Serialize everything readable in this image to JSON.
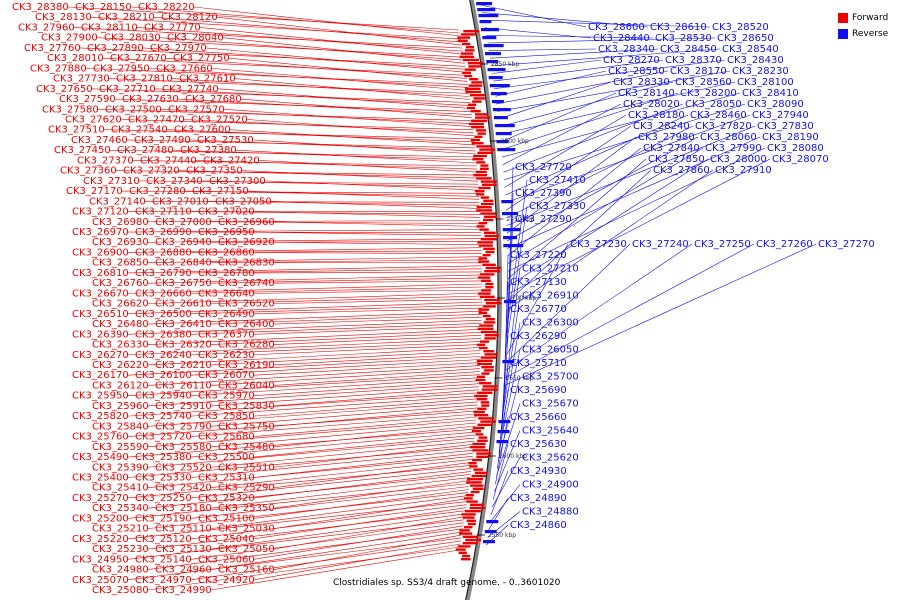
{
  "legend": [
    {
      "label": "Forward",
      "color": "#ee0000"
    },
    {
      "label": "Reverse",
      "color": "#1111ee"
    }
  ],
  "caption": "Clostridiales sp. SS3/4 draft genome. - 0..3601020",
  "ticks": [
    "2850 kbp",
    "2800 kbp",
    "2750 kbp",
    "2700 kbp",
    "2650 kbp",
    "2600 kbp",
    "2550 kbp"
  ],
  "forward_labels": [
    "CK3_28380",
    "CK3_28150",
    "CK3_28220",
    "CK3_28130",
    "CK3_28210",
    "CK3_28120",
    "CK3_27960",
    "CK3_28110",
    "CK3_27770",
    "CK3_27900",
    "CK3_28030",
    "CK3_28040",
    "CK3_27760",
    "CK3_27890",
    "CK3_27970",
    "CK3_28010",
    "CK3_27670",
    "CK3_27750",
    "CK3_27880",
    "CK3_27950",
    "CK3_27660",
    "CK3_27730",
    "CK3_27810",
    "CK3_27610",
    "CK3_27650",
    "CK3_27710",
    "CK3_27740",
    "CK3_27590",
    "CK3_27630",
    "CK3_27680",
    "CK3_27580",
    "CK3_27500",
    "CK3_27570",
    "CK3_27620",
    "CK3_27470",
    "CK3_27520",
    "CK3_27510",
    "CK3_27540",
    "CK3_27600",
    "CK3_27460",
    "CK3_27490",
    "CK3_27530",
    "CK3_27450",
    "CK3_27480",
    "CK3_27380",
    "CK3_27370",
    "CK3_27440",
    "CK3_27420",
    "CK3_27360",
    "CK3_27320",
    "CK3_27350",
    "CK3_27310",
    "CK3_27340",
    "CK3_27300",
    "CK3_27170",
    "CK3_27280",
    "CK3_27150",
    "CK3_27140",
    "CK3_27010",
    "CK3_27050",
    "CK3_27120",
    "CK3_27110",
    "CK3_27020",
    "CK3_26980",
    "CK3_27000",
    "CK3_26960",
    "CK3_26970",
    "CK3_26990",
    "CK3_26950",
    "CK3_26930",
    "CK3_26940",
    "CK3_26920",
    "CK3_26900",
    "CK3_26880",
    "CK3_26860",
    "CK3_26850",
    "CK3_26840",
    "CK3_26830",
    "CK3_26810",
    "CK3_26790",
    "CK3_26780",
    "CK3_26760",
    "CK3_26750",
    "CK3_26740",
    "CK3_26670",
    "CK3_26660",
    "CK3_26640",
    "CK3_26620",
    "CK3_26610",
    "CK3_26520",
    "CK3_26510",
    "CK3_26500",
    "CK3_26490",
    "CK3_26480",
    "CK3_26410",
    "CK3_26400",
    "CK3_26390",
    "CK3_26380",
    "CK3_26370",
    "CK3_26330",
    "CK3_26320",
    "CK3_26280",
    "CK3_26270",
    "CK3_26240",
    "CK3_26230",
    "CK3_26220",
    "CK3_26210",
    "CK3_26190",
    "CK3_26170",
    "CK3_26100",
    "CK3_26070",
    "CK3_26120",
    "CK3_26110",
    "CK3_26040",
    "CK3_25950",
    "CK3_25940",
    "CK3_25970",
    "CK3_25960",
    "CK3_25910",
    "CK3_25830",
    "CK3_25820",
    "CK3_25740",
    "CK3_25850",
    "CK3_25840",
    "CK3_25790",
    "CK3_25750",
    "CK3_25760",
    "CK3_25720",
    "CK3_25680",
    "CK3_25590",
    "CK3_25580",
    "CK3_25480",
    "CK3_25490",
    "CK3_25380",
    "CK3_25500",
    "CK3_25390",
    "CK3_25520",
    "CK3_25510",
    "CK3_25400",
    "CK3_25330",
    "CK3_25310",
    "CK3_25410",
    "CK3_25420",
    "CK3_25290",
    "CK3_25270",
    "CK3_25250",
    "CK3_25320",
    "CK3_25340",
    "CK3_25180",
    "CK3_25350",
    "CK3_25200",
    "CK3_25190",
    "CK3_25100",
    "CK3_25210",
    "CK3_25110",
    "CK3_25030",
    "CK3_25220",
    "CK3_25120",
    "CK3_25040",
    "CK3_25230",
    "CK3_25130",
    "CK3_25050",
    "CK3_24950",
    "CK3_25140",
    "CK3_25060",
    "CK3_24980",
    "CK3_24960",
    "CK3_25160",
    "CK3_25070",
    "CK3_24970",
    "CK3_24920",
    "CK3_25080",
    "CK3_24990"
  ],
  "reverse_labels": [
    "CK3_28600",
    "CK3_28610",
    "CK3_28520",
    "CK3_28440",
    "CK3_28530",
    "CK3_28650",
    "CK3_28340",
    "CK3_28450",
    "CK3_28540",
    "CK3_28270",
    "CK3_28370",
    "CK3_28430",
    "CK3_28550",
    "CK3_28170",
    "CK3_28230",
    "CK3_28330",
    "CK3_28560",
    "CK3_28100",
    "CK3_28140",
    "CK3_28200",
    "CK3_28410",
    "CK3_28020",
    "CK3_28050",
    "CK3_28090",
    "CK3_28180",
    "CK3_28460",
    "CK3_27940",
    "CK3_28240",
    "CK3_27820",
    "CK3_27830",
    "CK3_27980",
    "CK3_28060",
    "CK3_28190",
    "CK3_27840",
    "CK3_27990",
    "CK3_28080",
    "CK3_27850",
    "CK3_28000",
    "CK3_28070",
    "CK3_27860",
    "CK3_27910",
    "CK3_27720",
    "CK3_27410",
    "CK3_27390",
    "CK3_27330",
    "CK3_27290",
    "CK3_27230",
    "CK3_27240",
    "CK3_27250",
    "CK3_27260",
    "CK3_27270",
    "CK3_27220",
    "CK3_27210",
    "CK3_27130",
    "CK3_26910",
    "CK3_26770",
    "CK3_26300",
    "CK3_26290",
    "CK3_26050",
    "CK3_25710",
    "CK3_25700",
    "CK3_25690",
    "CK3_25670",
    "CK3_25660",
    "CK3_25640",
    "CK3_25630",
    "CK3_25620",
    "CK3_24930",
    "CK3_24900",
    "CK3_24890",
    "CK3_24880",
    "CK3_24860"
  ]
}
